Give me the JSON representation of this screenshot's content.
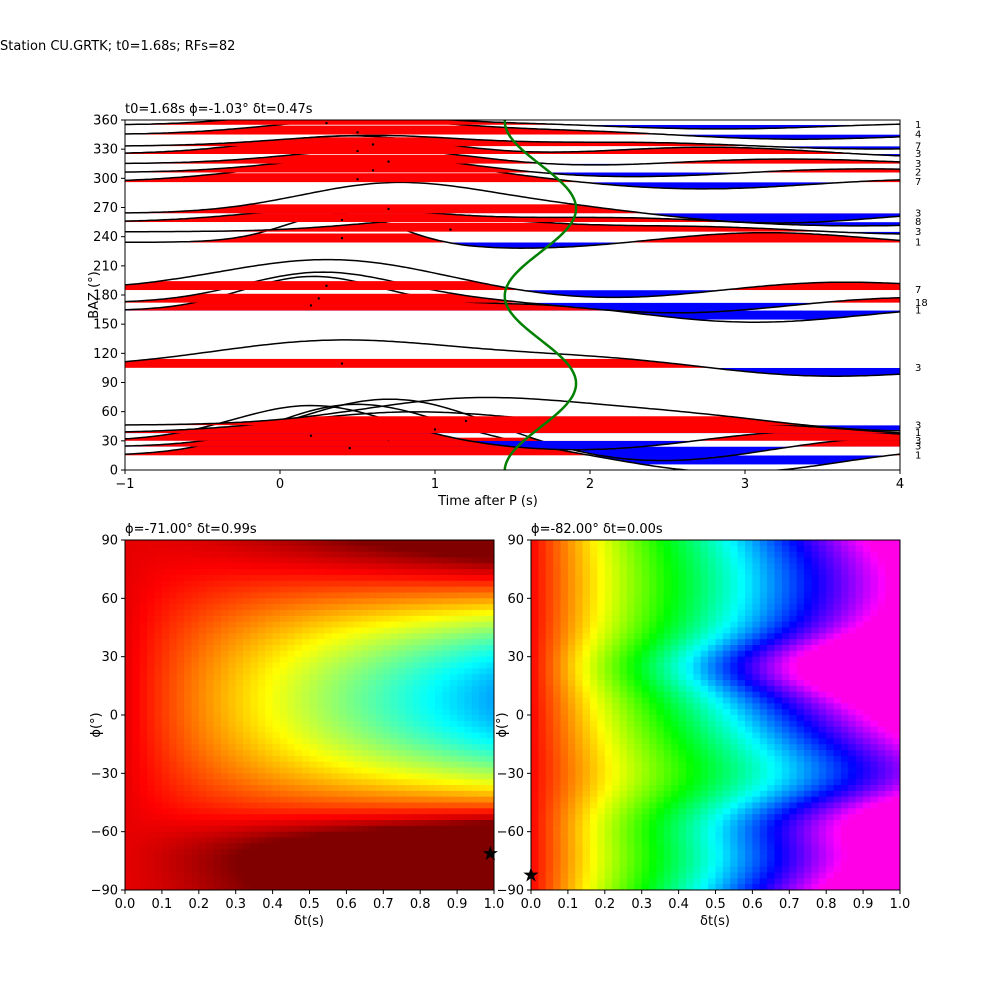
{
  "figure_title": "Station CU.GRTK; t0=1.68s; RFs=82",
  "colors": {
    "positive_fill": "#ff0000",
    "negative_fill": "#0000ff",
    "trace_line": "#000000",
    "fit_curve": "#008000",
    "star": "#000000"
  },
  "chart_data": [
    {
      "type": "line",
      "panel": "rf-wiggle",
      "title": "t0=1.68s ϕ=-1.03° δt=0.47s",
      "xlabel": "Time after P (s)",
      "ylabel": "BAZ (°)",
      "xlim": [
        -1,
        4
      ],
      "ylim": [
        0,
        360
      ],
      "x_ticks": [
        "−1",
        "0",
        "1",
        "2",
        "3",
        "4"
      ],
      "y_ticks": [
        "0",
        "30",
        "60",
        "90",
        "120",
        "150",
        "180",
        "210",
        "240",
        "270",
        "300",
        "330",
        "360"
      ],
      "grid": false,
      "traces": [
        {
          "baz": 15,
          "count": "1",
          "peak_t": 0.45,
          "amp": 50,
          "sigma": 0.55
        },
        {
          "baz": 24,
          "count": "3",
          "peak_t": 0.7,
          "amp": 45,
          "sigma": 0.6
        },
        {
          "baz": 30,
          "count": "3",
          "peak_t": 0.2,
          "amp": 35,
          "sigma": 0.5
        },
        {
          "baz": 38,
          "count": "1",
          "peak_t": 1.0,
          "amp": 25,
          "sigma": 0.8
        },
        {
          "baz": 46,
          "count": "3",
          "peak_t": 1.2,
          "amp": 30,
          "sigma": 0.7
        },
        {
          "baz": 105,
          "count": "3",
          "peak_t": 0.4,
          "amp": 30,
          "sigma": 0.8
        },
        {
          "baz": 164,
          "count": "1",
          "peak_t": 0.2,
          "amp": 35,
          "sigma": 0.45
        },
        {
          "baz": 172,
          "count": "18",
          "peak_t": 0.25,
          "amp": 30,
          "sigma": 0.5
        },
        {
          "baz": 185,
          "count": "7",
          "peak_t": 0.3,
          "amp": 30,
          "sigma": 0.7
        },
        {
          "baz": 234,
          "count": "1",
          "peak_t": 0.4,
          "amp": 30,
          "sigma": 0.35
        },
        {
          "baz": 245,
          "count": "3",
          "peak_t": 1.1,
          "amp": 15,
          "sigma": 0.6
        },
        {
          "baz": 255,
          "count": "8",
          "peak_t": 0.4,
          "amp": 15,
          "sigma": 0.6
        },
        {
          "baz": 264,
          "count": "3",
          "peak_t": 0.7,
          "amp": 30,
          "sigma": 0.6
        },
        {
          "baz": 296,
          "count": "7",
          "peak_t": 0.5,
          "amp": 20,
          "sigma": 0.7
        },
        {
          "baz": 306,
          "count": "2",
          "peak_t": 0.6,
          "amp": 15,
          "sigma": 0.6
        },
        {
          "baz": 315,
          "count": "3",
          "peak_t": 0.7,
          "amp": 15,
          "sigma": 0.6
        },
        {
          "baz": 325,
          "count": "3",
          "peak_t": 0.5,
          "amp": 20,
          "sigma": 0.6
        },
        {
          "baz": 333,
          "count": "7",
          "peak_t": 0.6,
          "amp": 12,
          "sigma": 0.6
        },
        {
          "baz": 345,
          "count": "4",
          "peak_t": 0.5,
          "amp": 15,
          "sigma": 0.6
        },
        {
          "baz": 355,
          "count": "1",
          "peak_t": 0.3,
          "amp": 12,
          "sigma": 0.5
        }
      ]
    },
    {
      "type": "heatmap",
      "panel": "grid-search-left",
      "title": "ϕ=-71.00° δt=0.99s",
      "xlabel": "δt(s)",
      "ylabel": "ϕ(°)",
      "xlim": [
        0.0,
        1.0
      ],
      "ylim": [
        -90,
        90
      ],
      "x_ticks": [
        "0.0",
        "0.1",
        "0.2",
        "0.3",
        "0.4",
        "0.5",
        "0.6",
        "0.7",
        "0.8",
        "0.9",
        "1.0"
      ],
      "y_ticks": [
        "−90",
        "−60",
        "−30",
        "0",
        "30",
        "60",
        "90"
      ],
      "colormap": "jet",
      "best": {
        "dt": 0.99,
        "phi": -71.0
      }
    },
    {
      "type": "heatmap",
      "panel": "grid-search-right",
      "title": "ϕ=-82.00° δt=0.00s",
      "xlabel": "δt(s)",
      "ylabel": "ϕ(°)",
      "xlim": [
        0.0,
        1.0
      ],
      "ylim": [
        -90,
        90
      ],
      "x_ticks": [
        "0.0",
        "0.1",
        "0.2",
        "0.3",
        "0.4",
        "0.5",
        "0.6",
        "0.7",
        "0.8",
        "0.9",
        "1.0"
      ],
      "y_ticks": [
        "−90",
        "−60",
        "−30",
        "0",
        "30",
        "60",
        "90"
      ],
      "colormap": "hsv",
      "best": {
        "dt": 0.0,
        "phi": -82.0
      }
    }
  ]
}
